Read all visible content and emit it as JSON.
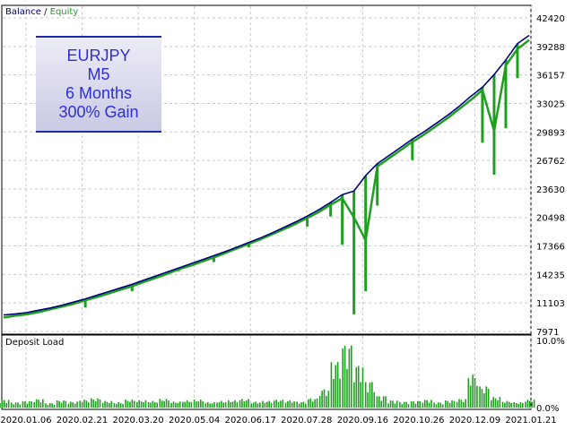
{
  "legend": {
    "balance": "Balance",
    "separator": " / ",
    "equity": "Equity"
  },
  "info_box": {
    "lines": [
      "EURJPY",
      "M5",
      "6 Months",
      "300% Gain"
    ]
  },
  "colors": {
    "balance": "#000080",
    "equity": "#1ea01e",
    "deposit_load": "#1ea01e",
    "grid": "#c8c8c8",
    "background": "#ffffff"
  },
  "chart_data": [
    {
      "type": "line",
      "series": [
        {
          "name": "Balance",
          "values": [
            9780,
            9900,
            10050,
            10300,
            10550,
            10850,
            11200,
            11550,
            11950,
            12350,
            12750,
            13150,
            13600,
            14050,
            14500,
            14950,
            15400,
            15850,
            16300,
            16750,
            17250,
            17750,
            18250,
            18800,
            19400,
            20000,
            20650,
            21350,
            22150,
            23000,
            23400,
            25100,
            26400,
            27300,
            28200,
            29100,
            29900,
            30800,
            31700,
            32700,
            33800,
            34800,
            36200,
            37800,
            39600,
            40500
          ]
        },
        {
          "name": "Equity",
          "values": [
            9500,
            9700,
            9850,
            10100,
            10400,
            10700,
            11000,
            11400,
            11750,
            12150,
            12550,
            12950,
            13400,
            13850,
            14300,
            14800,
            15200,
            15650,
            16100,
            16600,
            17100,
            17600,
            18100,
            18650,
            19200,
            19800,
            20450,
            21100,
            21900,
            22600,
            20500,
            18000,
            26100,
            27000,
            27900,
            28800,
            29600,
            30500,
            31400,
            32400,
            33400,
            34500,
            30000,
            37200,
            39000,
            40000
          ]
        }
      ],
      "equity_dips": [
        {
          "i": 7,
          "low": 10600
        },
        {
          "i": 11,
          "low": 12400
        },
        {
          "i": 15,
          "low": 14600
        },
        {
          "i": 18,
          "low": 15600
        },
        {
          "i": 21,
          "low": 17200
        },
        {
          "i": 26,
          "low": 19500
        },
        {
          "i": 28,
          "low": 20600
        },
        {
          "i": 29,
          "low": 17500
        },
        {
          "i": 30,
          "low": 9850
        },
        {
          "i": 31,
          "low": 12400
        },
        {
          "i": 32,
          "low": 21800
        },
        {
          "i": 35,
          "low": 26800
        },
        {
          "i": 41,
          "low": 28700
        },
        {
          "i": 42,
          "low": 25200
        },
        {
          "i": 43,
          "low": 30300
        },
        {
          "i": 44,
          "low": 35800
        }
      ],
      "y_ticks": [
        "42420",
        "39288",
        "36157",
        "33025",
        "29893",
        "26762",
        "23630",
        "20498",
        "17366",
        "14235",
        "11103",
        "7971"
      ],
      "ylim": [
        7971,
        42420
      ],
      "grid": true
    },
    {
      "type": "bar",
      "title": "Deposit Load",
      "values": [
        1.2,
        0.8,
        1.0,
        1.3,
        0.7,
        1.1,
        0.9,
        1.2,
        1.4,
        1.0,
        0.8,
        1.2,
        1.1,
        1.0,
        1.3,
        0.9,
        1.1,
        1.2,
        0.8,
        1.0,
        1.1,
        1.3,
        0.9,
        1.0,
        1.2,
        1.1,
        0.9,
        1.4,
        2.8,
        7.0,
        9.6,
        6.5,
        4.0,
        1.8,
        1.1,
        0.9,
        1.0,
        1.2,
        0.8,
        1.1,
        1.3,
        5.0,
        3.2,
        1.6,
        1.0,
        0.8,
        1.2
      ],
      "y_ticks": [
        "10.0%",
        "0.0%"
      ],
      "ylim": [
        0,
        10
      ]
    }
  ],
  "x_ticks": [
    "2020.01.06",
    "2020.02.21",
    "2020.03.20",
    "2020.05.04",
    "2020.06.17",
    "2020.07.28",
    "2020.09.16",
    "2020.10.26",
    "2020.12.09",
    "2021.01.21"
  ]
}
